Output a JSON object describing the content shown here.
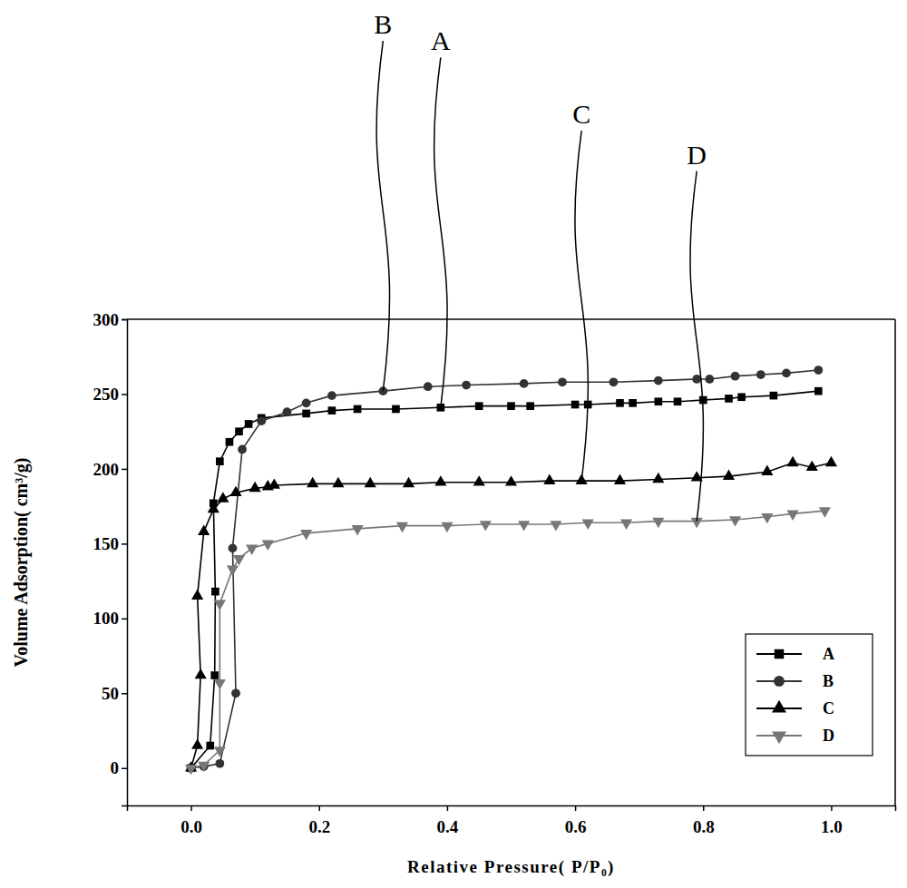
{
  "chart_data": {
    "type": "line",
    "x_label": "Relative Pressure( P/P₀)",
    "y_label": "Volume Adsorption( cm³/g)",
    "xlim": [
      -0.1,
      1.1
    ],
    "ylim": [
      -25,
      300
    ],
    "xticks": [
      {
        "value": 0,
        "label": "0.0"
      },
      0.2,
      0.4,
      0.6,
      0.8,
      {
        "value": 1,
        "label": "1.0"
      }
    ],
    "yticks": [
      0,
      50,
      100,
      150,
      200,
      250,
      300
    ],
    "grid": false,
    "legend": "lower right",
    "series": [
      {
        "name": "A",
        "color": "#000000",
        "marker": "square",
        "line_style": "solid",
        "x": [
          0.0,
          0.03,
          0.037,
          0.038,
          0.035,
          0.045,
          0.06,
          0.075,
          0.09,
          0.11,
          0.18,
          0.22,
          0.26,
          0.32,
          0.39,
          0.45,
          0.5,
          0.53,
          0.6,
          0.62,
          0.67,
          0.69,
          0.73,
          0.76,
          0.8,
          0.84,
          0.86,
          0.91,
          0.98
        ],
        "values": [
          0,
          15,
          62,
          118,
          177,
          205,
          218,
          225,
          230,
          234,
          237,
          239,
          240,
          240,
          241,
          242,
          242,
          242,
          243,
          243,
          244,
          244,
          245,
          245,
          246,
          247,
          248,
          249,
          252
        ]
      },
      {
        "name": "B",
        "color": "#333333",
        "marker": "circle",
        "line_style": "solid",
        "x": [
          0.0,
          0.02,
          0.045,
          0.07,
          0.065,
          0.08,
          0.11,
          0.15,
          0.18,
          0.22,
          0.3,
          0.37,
          0.43,
          0.52,
          0.58,
          0.66,
          0.73,
          0.79,
          0.81,
          0.85,
          0.89,
          0.93,
          0.98
        ],
        "values": [
          0,
          1,
          3,
          50,
          147,
          213,
          232,
          238,
          244,
          249,
          252,
          255,
          256,
          257,
          258,
          258,
          259,
          260,
          260,
          262,
          263,
          264,
          266
        ]
      },
      {
        "name": "C",
        "color": "#000000",
        "marker": "triangle-up",
        "line_style": "solid",
        "x": [
          0.0,
          0.01,
          0.015,
          0.01,
          0.02,
          0.035,
          0.05,
          0.07,
          0.1,
          0.12,
          0.13,
          0.19,
          0.23,
          0.28,
          0.34,
          0.39,
          0.45,
          0.5,
          0.56,
          0.61,
          0.67,
          0.73,
          0.79,
          0.84,
          0.9,
          0.94,
          0.97,
          1.0
        ],
        "values": [
          0,
          15,
          62,
          115,
          158,
          173,
          180,
          184,
          187,
          188,
          189,
          190,
          190,
          190,
          190,
          191,
          191,
          191,
          192,
          192,
          192,
          193,
          194,
          195,
          198,
          204,
          201,
          204
        ]
      },
      {
        "name": "D",
        "color": "#777777",
        "marker": "triangle-down",
        "line_style": "solid",
        "x": [
          0.0,
          0.02,
          0.045,
          0.045,
          0.045,
          0.065,
          0.075,
          0.095,
          0.12,
          0.18,
          0.26,
          0.33,
          0.4,
          0.46,
          0.52,
          0.57,
          0.62,
          0.68,
          0.73,
          0.79,
          0.85,
          0.9,
          0.94,
          0.99
        ],
        "values": [
          0,
          2,
          12,
          57,
          110,
          133,
          140,
          147,
          150,
          157,
          160,
          162,
          162,
          163,
          163,
          163,
          164,
          164,
          165,
          165,
          166,
          168,
          170,
          172
        ]
      }
    ],
    "annotations": [
      {
        "text": "B",
        "x": 0.3
      },
      {
        "text": "A",
        "x": 0.39
      },
      {
        "text": "C",
        "x": 0.61
      },
      {
        "text": "D",
        "x": 0.79
      }
    ]
  }
}
